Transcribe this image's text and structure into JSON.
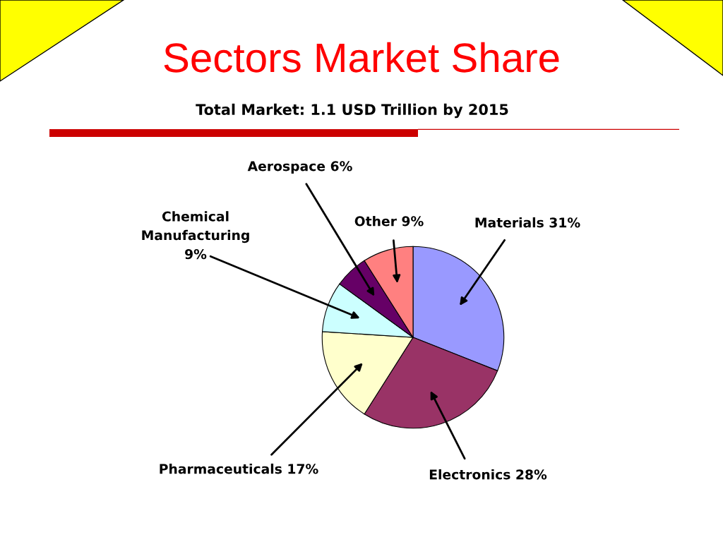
{
  "chart_data": {
    "type": "pie",
    "title": "Sectors Market Share",
    "subtitle": "Total Market: 1.1 USD Trillion by 2015",
    "categories": [
      "Materials",
      "Electronics",
      "Pharmaceuticals",
      "Chemical Manufacturing",
      "Aerospace",
      "Other"
    ],
    "values": [
      31,
      28,
      17,
      9,
      6,
      9
    ],
    "colors": [
      "#9999ff",
      "#993366",
      "#ffffcc",
      "#ccffff",
      "#660066",
      "#ff8080"
    ],
    "value_labels": [
      "31%",
      "28%",
      "17%",
      "9%",
      "6%",
      "9%"
    ]
  }
}
